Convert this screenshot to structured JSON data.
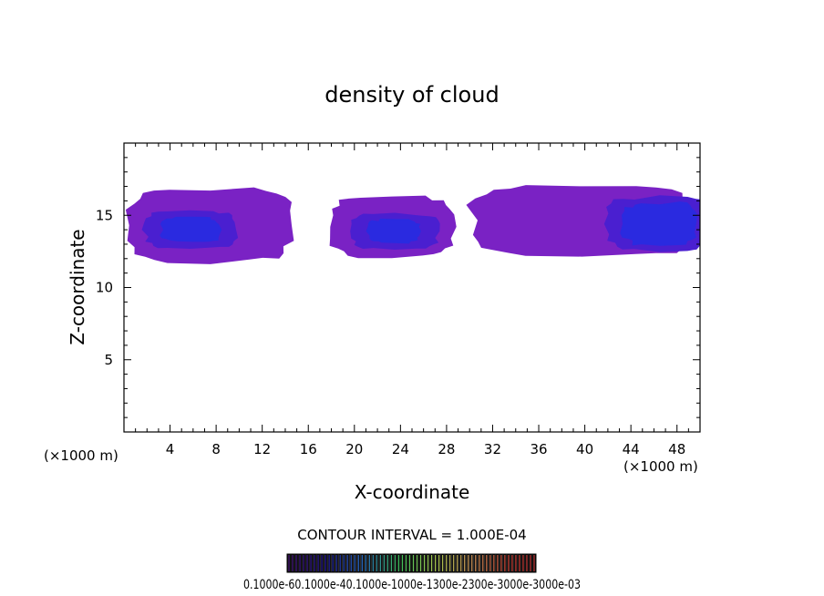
{
  "chart_data": {
    "type": "heatmap",
    "title": "density of cloud",
    "xlabel": "X-coordinate",
    "ylabel": "Z-coordinate",
    "x_unit_left": "(×1000 m)",
    "x_unit_right": "(×1000 m)",
    "xlim": [
      0,
      50
    ],
    "ylim": [
      0,
      20
    ],
    "xticks": [
      4,
      8,
      12,
      16,
      20,
      24,
      28,
      32,
      36,
      40,
      44,
      48
    ],
    "yticks": [
      5,
      10,
      15
    ],
    "contour_interval": "CONTOUR INTERVAL = 1.000E-04",
    "colorbar_labels": "0.1000e-60.1000e-40.1000e-1000e-1300e-2300e-3000e-3000e-03",
    "colors": {
      "outer": "#7a22c4",
      "mid": "#4a1fd0",
      "core": "#2a2ae0"
    },
    "cloud_regions": [
      {
        "name": "left-cloud",
        "x": [
          0,
          15
        ],
        "z": [
          11.6,
          17.0
        ],
        "core_x": [
          3,
          8.5
        ],
        "core_z": [
          13,
          15
        ]
      },
      {
        "name": "middle-cloud",
        "x": [
          17.5,
          29
        ],
        "z": [
          12.0,
          16.4
        ],
        "core_x": [
          21,
          26
        ],
        "core_z": [
          13,
          14.8
        ]
      },
      {
        "name": "right-cloud",
        "x": [
          29.5,
          50
        ],
        "z": [
          12.0,
          17.3
        ],
        "core_x": [
          43,
          50
        ],
        "core_z": [
          12.8,
          16
        ]
      }
    ]
  }
}
